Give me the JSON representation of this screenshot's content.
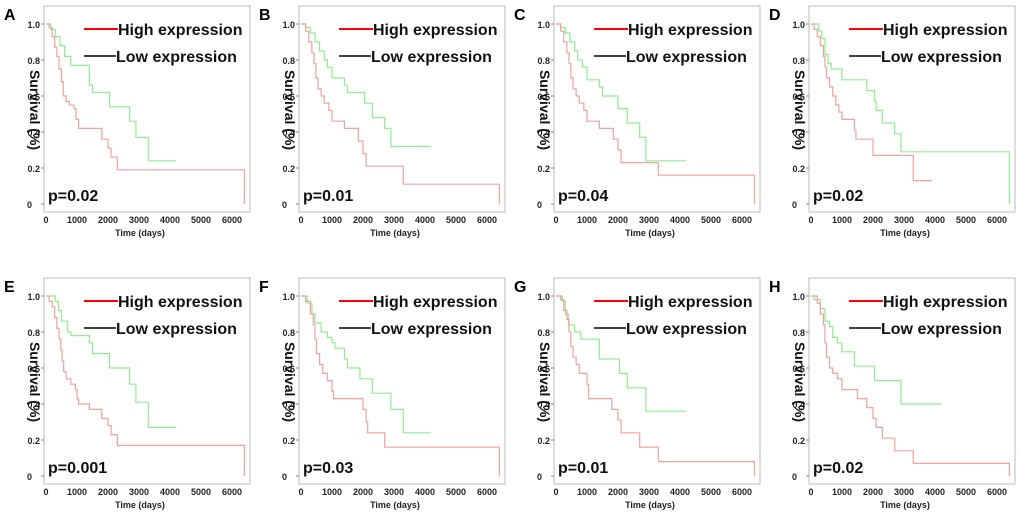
{
  "chart_data": {
    "shared": {
      "type": "line",
      "ylabel": "Survival (%)",
      "xlabel": "Time (days)",
      "xlim": [
        0,
        6400
      ],
      "ylim": [
        0,
        1.0
      ],
      "xticks": [
        "0",
        "1000",
        "2000",
        "3000",
        "4000",
        "5000",
        "6000"
      ],
      "yticks": [
        "0",
        "0.2",
        "0.4",
        "0.6",
        "0.8",
        "1.0"
      ],
      "legend": [
        "High expression",
        "Low expression"
      ],
      "legend_placement": "top-right",
      "grid": false,
      "colors": {
        "high_legend": "#ff0000",
        "low_legend": "#000000",
        "high_curve": "#f4a0a0",
        "low_curve": "#90ee90",
        "frame": "#bbbbbb"
      }
    },
    "panels": [
      {
        "label": "A",
        "p_value": "p=0.02",
        "high": {
          "points": [
            [
              0,
              1
            ],
            [
              100,
              0.98
            ],
            [
              200,
              0.93
            ],
            [
              280,
              0.87
            ],
            [
              350,
              0.82
            ],
            [
              420,
              0.75
            ],
            [
              500,
              0.68
            ],
            [
              560,
              0.6
            ],
            [
              650,
              0.57
            ],
            [
              750,
              0.55
            ],
            [
              900,
              0.53
            ],
            [
              970,
              0.47
            ],
            [
              1050,
              0.42
            ],
            [
              1800,
              0.36
            ],
            [
              2000,
              0.31
            ],
            [
              2100,
              0.26
            ],
            [
              2300,
              0.19
            ],
            [
              6400,
              0
            ]
          ]
        },
        "low": {
          "points": [
            [
              0,
              1
            ],
            [
              150,
              0.97
            ],
            [
              300,
              0.93
            ],
            [
              450,
              0.88
            ],
            [
              600,
              0.82
            ],
            [
              800,
              0.77
            ],
            [
              1400,
              0.66
            ],
            [
              1500,
              0.62
            ],
            [
              2050,
              0.54
            ],
            [
              2700,
              0.46
            ],
            [
              2900,
              0.37
            ],
            [
              3300,
              0.24
            ]
          ],
          "end": 4200
        }
      },
      {
        "label": "B",
        "p_value": "p=0.01",
        "high": {
          "points": [
            [
              0,
              1
            ],
            [
              150,
              0.96
            ],
            [
              250,
              0.9
            ],
            [
              350,
              0.84
            ],
            [
              420,
              0.78
            ],
            [
              480,
              0.7
            ],
            [
              550,
              0.64
            ],
            [
              650,
              0.6
            ],
            [
              750,
              0.56
            ],
            [
              900,
              0.52
            ],
            [
              1000,
              0.46
            ],
            [
              1400,
              0.42
            ],
            [
              1850,
              0.35
            ],
            [
              2000,
              0.28
            ],
            [
              2100,
              0.21
            ],
            [
              3300,
              0.11
            ],
            [
              6400,
              0
            ]
          ]
        },
        "low": {
          "points": [
            [
              0,
              1
            ],
            [
              150,
              0.98
            ],
            [
              300,
              0.95
            ],
            [
              450,
              0.9
            ],
            [
              600,
              0.85
            ],
            [
              750,
              0.8
            ],
            [
              850,
              0.76
            ],
            [
              1000,
              0.7
            ],
            [
              1400,
              0.66
            ],
            [
              1500,
              0.62
            ],
            [
              2050,
              0.56
            ],
            [
              2300,
              0.48
            ],
            [
              2700,
              0.42
            ],
            [
              2900,
              0.32
            ]
          ],
          "end": 4200
        }
      },
      {
        "label": "C",
        "p_value": "p=0.04",
        "high": {
          "points": [
            [
              0,
              1
            ],
            [
              150,
              0.96
            ],
            [
              250,
              0.9
            ],
            [
              350,
              0.84
            ],
            [
              420,
              0.78
            ],
            [
              480,
              0.7
            ],
            [
              550,
              0.64
            ],
            [
              650,
              0.6
            ],
            [
              750,
              0.56
            ],
            [
              900,
              0.52
            ],
            [
              1000,
              0.46
            ],
            [
              1400,
              0.42
            ],
            [
              1850,
              0.36
            ],
            [
              2000,
              0.3
            ],
            [
              2100,
              0.23
            ],
            [
              3300,
              0.16
            ],
            [
              6400,
              0
            ]
          ]
        },
        "low": {
          "points": [
            [
              0,
              1
            ],
            [
              150,
              0.98
            ],
            [
              300,
              0.95
            ],
            [
              450,
              0.9
            ],
            [
              600,
              0.85
            ],
            [
              700,
              0.8
            ],
            [
              850,
              0.76
            ],
            [
              1000,
              0.69
            ],
            [
              1400,
              0.65
            ],
            [
              1500,
              0.6
            ],
            [
              2000,
              0.53
            ],
            [
              2300,
              0.45
            ],
            [
              2700,
              0.37
            ],
            [
              2900,
              0.24
            ]
          ],
          "end": 4200
        }
      },
      {
        "label": "D",
        "p_value": "p=0.02",
        "high": {
          "points": [
            [
              0,
              1
            ],
            [
              100,
              0.97
            ],
            [
              200,
              0.93
            ],
            [
              300,
              0.88
            ],
            [
              400,
              0.82
            ],
            [
              450,
              0.76
            ],
            [
              500,
              0.7
            ],
            [
              600,
              0.65
            ],
            [
              700,
              0.6
            ],
            [
              800,
              0.55
            ],
            [
              900,
              0.51
            ],
            [
              1000,
              0.47
            ],
            [
              1400,
              0.41
            ],
            [
              1450,
              0.36
            ],
            [
              2000,
              0.27
            ],
            [
              3300,
              0.13
            ]
          ],
          "end": 3900
        },
        "low": {
          "points": [
            [
              0,
              1
            ],
            [
              250,
              0.96
            ],
            [
              350,
              0.92
            ],
            [
              450,
              0.83
            ],
            [
              550,
              0.78
            ],
            [
              650,
              0.75
            ],
            [
              1000,
              0.69
            ],
            [
              1800,
              0.63
            ],
            [
              2050,
              0.57
            ],
            [
              2100,
              0.52
            ],
            [
              2300,
              0.45
            ],
            [
              2700,
              0.39
            ],
            [
              2900,
              0.29
            ],
            [
              6400,
              0
            ]
          ]
        }
      },
      {
        "label": "E",
        "p_value": "p=0.001",
        "high": {
          "points": [
            [
              0,
              1
            ],
            [
              100,
              0.97
            ],
            [
              200,
              0.94
            ],
            [
              280,
              0.88
            ],
            [
              350,
              0.82
            ],
            [
              420,
              0.76
            ],
            [
              480,
              0.7
            ],
            [
              520,
              0.64
            ],
            [
              570,
              0.58
            ],
            [
              650,
              0.54
            ],
            [
              800,
              0.51
            ],
            [
              950,
              0.48
            ],
            [
              1000,
              0.43
            ],
            [
              1050,
              0.4
            ],
            [
              1400,
              0.37
            ],
            [
              1800,
              0.32
            ],
            [
              2000,
              0.28
            ],
            [
              2100,
              0.23
            ],
            [
              2300,
              0.17
            ],
            [
              6400,
              0
            ]
          ]
        },
        "low": {
          "points": [
            [
              0,
              1
            ],
            [
              300,
              0.97
            ],
            [
              400,
              0.92
            ],
            [
              500,
              0.86
            ],
            [
              700,
              0.8
            ],
            [
              800,
              0.78
            ],
            [
              1400,
              0.74
            ],
            [
              1500,
              0.68
            ],
            [
              2050,
              0.6
            ],
            [
              2700,
              0.51
            ],
            [
              2900,
              0.41
            ],
            [
              3300,
              0.27
            ]
          ],
          "end": 4200
        }
      },
      {
        "label": "F",
        "p_value": "p=0.03",
        "high": {
          "points": [
            [
              0,
              1
            ],
            [
              150,
              0.97
            ],
            [
              300,
              0.9
            ],
            [
              400,
              0.84
            ],
            [
              450,
              0.76
            ],
            [
              500,
              0.68
            ],
            [
              600,
              0.62
            ],
            [
              700,
              0.57
            ],
            [
              850,
              0.53
            ],
            [
              1000,
              0.47
            ],
            [
              1050,
              0.43
            ],
            [
              2000,
              0.37
            ],
            [
              2100,
              0.3
            ],
            [
              2150,
              0.24
            ],
            [
              2700,
              0.16
            ],
            [
              6400,
              0
            ]
          ]
        },
        "low": {
          "points": [
            [
              0,
              1
            ],
            [
              200,
              0.96
            ],
            [
              350,
              0.9
            ],
            [
              450,
              0.85
            ],
            [
              650,
              0.8
            ],
            [
              850,
              0.77
            ],
            [
              1000,
              0.74
            ],
            [
              1100,
              0.71
            ],
            [
              1400,
              0.65
            ],
            [
              1500,
              0.6
            ],
            [
              1900,
              0.54
            ],
            [
              2300,
              0.46
            ],
            [
              2900,
              0.37
            ],
            [
              3300,
              0.24
            ]
          ],
          "end": 4200
        }
      },
      {
        "label": "G",
        "p_value": "p=0.01",
        "high": {
          "points": [
            [
              0,
              1
            ],
            [
              150,
              0.98
            ],
            [
              250,
              0.92
            ],
            [
              350,
              0.87
            ],
            [
              420,
              0.8
            ],
            [
              480,
              0.72
            ],
            [
              550,
              0.66
            ],
            [
              650,
              0.62
            ],
            [
              750,
              0.57
            ],
            [
              1000,
              0.51
            ],
            [
              1050,
              0.43
            ],
            [
              1800,
              0.37
            ],
            [
              2000,
              0.31
            ],
            [
              2100,
              0.24
            ],
            [
              2700,
              0.16
            ],
            [
              3300,
              0.08
            ],
            [
              6400,
              0
            ]
          ]
        },
        "low": {
          "points": [
            [
              0,
              1
            ],
            [
              200,
              0.97
            ],
            [
              300,
              0.9
            ],
            [
              400,
              0.84
            ],
            [
              600,
              0.8
            ],
            [
              800,
              0.76
            ],
            [
              1400,
              0.65
            ],
            [
              2050,
              0.57
            ],
            [
              2300,
              0.49
            ],
            [
              2900,
              0.36
            ]
          ],
          "end": 4200
        }
      },
      {
        "label": "H",
        "p_value": "p=0.02",
        "high": {
          "points": [
            [
              0,
              1
            ],
            [
              200,
              0.96
            ],
            [
              300,
              0.9
            ],
            [
              400,
              0.84
            ],
            [
              450,
              0.74
            ],
            [
              500,
              0.66
            ],
            [
              600,
              0.6
            ],
            [
              700,
              0.57
            ],
            [
              850,
              0.54
            ],
            [
              1000,
              0.48
            ],
            [
              1500,
              0.43
            ],
            [
              1800,
              0.38
            ],
            [
              2000,
              0.32
            ],
            [
              2100,
              0.27
            ],
            [
              2300,
              0.21
            ],
            [
              2700,
              0.14
            ],
            [
              3300,
              0.07
            ],
            [
              6400,
              0
            ]
          ]
        },
        "low": {
          "points": [
            [
              0,
              1
            ],
            [
              100,
              0.98
            ],
            [
              300,
              0.93
            ],
            [
              450,
              0.86
            ],
            [
              600,
              0.83
            ],
            [
              700,
              0.77
            ],
            [
              850,
              0.74
            ],
            [
              1000,
              0.69
            ],
            [
              1400,
              0.61
            ],
            [
              2050,
              0.53
            ],
            [
              2900,
              0.4
            ]
          ],
          "end": 4200
        }
      }
    ]
  }
}
